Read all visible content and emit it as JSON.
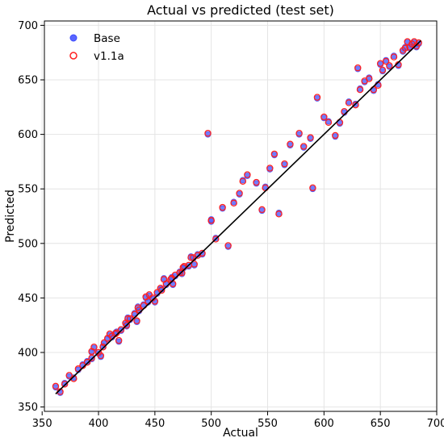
{
  "chart_data": {
    "type": "scatter",
    "title": "Actual vs predicted (test set)",
    "xlabel": "Actual",
    "ylabel": "Predicted",
    "xlim": [
      352,
      700
    ],
    "ylim": [
      346,
      704
    ],
    "xticks": [
      350,
      400,
      450,
      500,
      550,
      600,
      650,
      700
    ],
    "yticks": [
      350,
      400,
      450,
      500,
      550,
      600,
      650,
      700
    ],
    "grid": true,
    "legend_position": "top-left",
    "reference_line": {
      "from": [
        362,
        362
      ],
      "to": [
        686,
        686
      ],
      "color": "#000000"
    },
    "series": [
      {
        "name": "Base",
        "marker": "filled-circle",
        "color": "#3b4bff",
        "x": [
          362,
          366,
          370,
          374,
          378,
          382,
          386,
          390,
          394,
          396,
          400,
          404,
          408,
          412,
          416,
          420,
          424,
          428,
          432,
          436,
          440,
          444,
          448,
          452,
          456,
          460,
          464,
          468,
          472,
          476,
          480,
          484,
          488,
          492,
          497,
          500,
          504,
          510,
          515,
          520,
          525,
          528,
          532,
          540,
          545,
          548,
          552,
          556,
          560,
          565,
          570,
          578,
          582,
          588,
          590,
          594,
          600,
          604,
          610,
          614,
          618,
          622,
          628,
          630,
          632,
          636,
          640,
          644,
          648,
          650,
          652,
          655,
          658,
          662,
          666,
          670,
          672,
          674,
          676,
          678,
          680,
          682,
          684,
          394,
          402,
          410,
          418,
          426,
          434,
          442,
          450,
          458,
          466,
          474,
          482,
          405,
          415,
          425,
          435,
          445,
          455,
          465,
          475,
          485,
          500
        ],
        "y": [
          368,
          363,
          372,
          378,
          377,
          384,
          389,
          392,
          394,
          404,
          399,
          406,
          412,
          414,
          419,
          420,
          426,
          430,
          436,
          438,
          444,
          446,
          449,
          454,
          458,
          462,
          466,
          470,
          474,
          478,
          479,
          486,
          490,
          490,
          600,
          520,
          505,
          532,
          497,
          538,
          545,
          558,
          562,
          555,
          530,
          552,
          568,
          581,
          528,
          572,
          590,
          600,
          588,
          596,
          550,
          633,
          615,
          612,
          598,
          610,
          620,
          630,
          628,
          660,
          642,
          648,
          652,
          640,
          646,
          664,
          658,
          668,
          662,
          672,
          663,
          676,
          680,
          684,
          679,
          682,
          684,
          680,
          683,
          400,
          396,
          416,
          410,
          432,
          428,
          450,
          446,
          468,
          462,
          472,
          488,
          408,
          418,
          424,
          442,
          452,
          458,
          469,
          477,
          480,
          522
        ]
      },
      {
        "name": "v1.1a",
        "marker": "open-circle",
        "color": "#ff2020",
        "x": [
          362,
          366,
          370,
          374,
          378,
          382,
          386,
          390,
          394,
          396,
          400,
          404,
          408,
          412,
          416,
          420,
          424,
          428,
          432,
          436,
          440,
          444,
          448,
          452,
          456,
          460,
          464,
          468,
          472,
          476,
          480,
          484,
          488,
          492,
          497,
          500,
          504,
          510,
          515,
          520,
          525,
          528,
          532,
          540,
          545,
          548,
          552,
          556,
          560,
          565,
          570,
          578,
          582,
          588,
          590,
          594,
          600,
          604,
          610,
          614,
          618,
          622,
          628,
          630,
          632,
          636,
          640,
          644,
          648,
          650,
          652,
          655,
          658,
          662,
          666,
          670,
          672,
          674,
          676,
          678,
          680,
          682,
          684,
          394,
          402,
          410,
          418,
          426,
          434,
          442,
          450,
          458,
          466,
          474,
          482,
          405,
          415,
          425,
          435,
          445,
          455,
          465,
          475,
          485,
          500
        ],
        "y": [
          369,
          364,
          371,
          379,
          376,
          385,
          388,
          391,
          395,
          405,
          400,
          405,
          413,
          415,
          418,
          421,
          427,
          431,
          435,
          439,
          443,
          447,
          450,
          455,
          457,
          463,
          467,
          471,
          473,
          479,
          480,
          487,
          489,
          491,
          601,
          521,
          504,
          533,
          498,
          537,
          546,
          557,
          563,
          556,
          531,
          551,
          569,
          582,
          527,
          573,
          591,
          601,
          589,
          597,
          551,
          634,
          616,
          611,
          599,
          611,
          621,
          629,
          627,
          661,
          641,
          649,
          651,
          641,
          645,
          665,
          659,
          667,
          663,
          671,
          664,
          677,
          679,
          685,
          680,
          683,
          685,
          681,
          684,
          401,
          397,
          417,
          411,
          431,
          429,
          451,
          447,
          467,
          463,
          473,
          487,
          409,
          417,
          425,
          441,
          453,
          459,
          468,
          478,
          481,
          521
        ]
      }
    ]
  }
}
